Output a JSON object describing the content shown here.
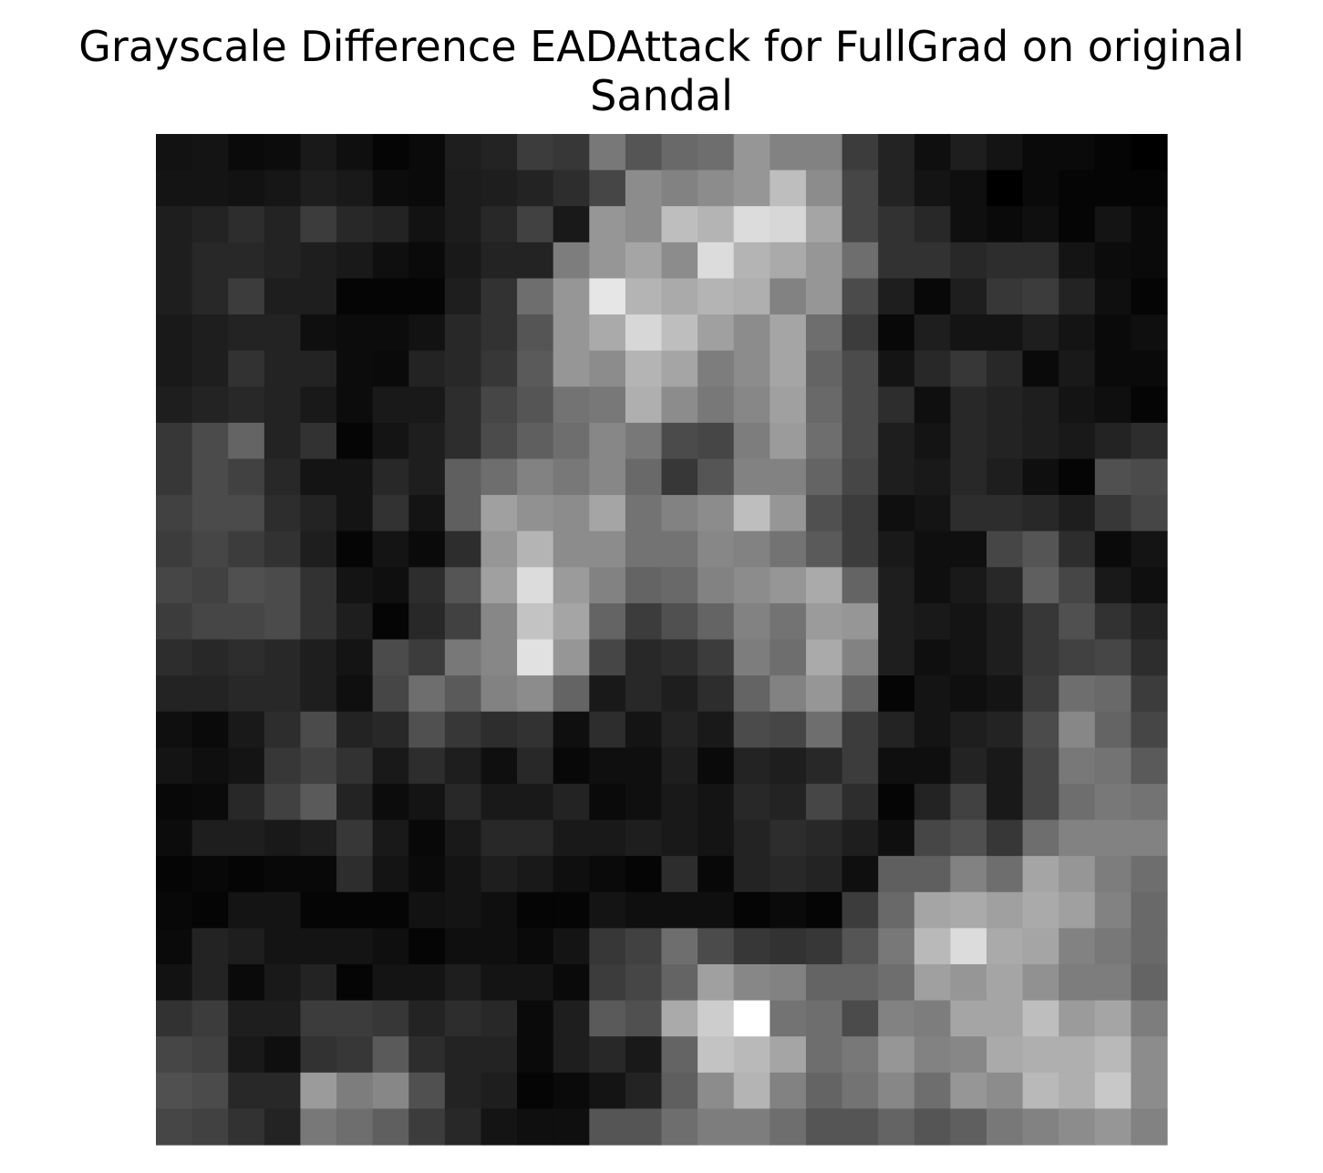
{
  "chart_data": {
    "type": "heatmap",
    "title_lines": [
      "Grayscale Difference EADAttack for FullGrad on original",
      "Sandal"
    ],
    "colormap": "gray",
    "value_range": [
      0,
      255
    ],
    "axes": "off",
    "rows": 28,
    "cols": 28,
    "values": [
      [
        18,
        20,
        10,
        12,
        25,
        15,
        5,
        10,
        30,
        35,
        60,
        55,
        120,
        85,
        105,
        110,
        150,
        130,
        130,
        60,
        35,
        15,
        30,
        20,
        10,
        10,
        5,
        0
      ],
      [
        20,
        20,
        18,
        22,
        30,
        25,
        12,
        10,
        28,
        30,
        35,
        45,
        70,
        140,
        130,
        140,
        150,
        190,
        140,
        70,
        35,
        20,
        15,
        0,
        10,
        5,
        5,
        5
      ],
      [
        30,
        35,
        45,
        35,
        60,
        40,
        35,
        18,
        28,
        40,
        65,
        25,
        150,
        140,
        190,
        180,
        220,
        215,
        165,
        70,
        50,
        40,
        15,
        10,
        15,
        5,
        20,
        10
      ],
      [
        30,
        40,
        40,
        35,
        30,
        25,
        15,
        10,
        25,
        35,
        35,
        125,
        150,
        165,
        140,
        220,
        180,
        170,
        150,
        110,
        50,
        50,
        40,
        45,
        45,
        20,
        12,
        10
      ],
      [
        30,
        40,
        60,
        30,
        30,
        5,
        5,
        5,
        30,
        50,
        110,
        150,
        230,
        180,
        170,
        180,
        175,
        130,
        150,
        75,
        30,
        8,
        30,
        55,
        60,
        35,
        15,
        5
      ],
      [
        25,
        30,
        35,
        35,
        15,
        12,
        12,
        18,
        40,
        50,
        85,
        150,
        170,
        215,
        190,
        160,
        140,
        165,
        110,
        60,
        8,
        30,
        20,
        20,
        30,
        20,
        10,
        15
      ],
      [
        25,
        30,
        50,
        35,
        35,
        12,
        10,
        35,
        40,
        55,
        90,
        150,
        140,
        180,
        165,
        125,
        140,
        165,
        100,
        75,
        20,
        40,
        55,
        40,
        10,
        25,
        10,
        10
      ],
      [
        30,
        35,
        40,
        35,
        25,
        12,
        25,
        25,
        45,
        70,
        85,
        115,
        120,
        175,
        140,
        120,
        135,
        160,
        105,
        75,
        45,
        15,
        40,
        35,
        30,
        20,
        15,
        5
      ],
      [
        55,
        75,
        100,
        35,
        50,
        5,
        20,
        30,
        45,
        75,
        95,
        110,
        135,
        120,
        75,
        70,
        125,
        155,
        110,
        75,
        30,
        20,
        40,
        35,
        30,
        25,
        35,
        45
      ],
      [
        55,
        75,
        65,
        40,
        20,
        20,
        40,
        30,
        95,
        110,
        130,
        120,
        135,
        105,
        55,
        85,
        130,
        130,
        100,
        70,
        30,
        25,
        40,
        30,
        15,
        5,
        80,
        75
      ],
      [
        65,
        75,
        75,
        45,
        35,
        20,
        50,
        20,
        95,
        160,
        145,
        140,
        165,
        115,
        130,
        140,
        190,
        150,
        80,
        60,
        15,
        20,
        45,
        45,
        40,
        30,
        55,
        70
      ],
      [
        60,
        70,
        60,
        50,
        30,
        5,
        20,
        10,
        45,
        150,
        180,
        140,
        140,
        115,
        115,
        135,
        130,
        115,
        90,
        60,
        25,
        15,
        15,
        70,
        85,
        45,
        10,
        20
      ],
      [
        70,
        65,
        80,
        75,
        50,
        20,
        15,
        45,
        85,
        160,
        220,
        155,
        130,
        100,
        105,
        130,
        140,
        150,
        170,
        100,
        30,
        15,
        25,
        40,
        95,
        70,
        25,
        15
      ],
      [
        60,
        70,
        70,
        75,
        50,
        30,
        5,
        40,
        65,
        135,
        195,
        165,
        100,
        60,
        80,
        100,
        130,
        115,
        155,
        150,
        30,
        25,
        20,
        30,
        55,
        80,
        50,
        35
      ],
      [
        45,
        40,
        45,
        40,
        30,
        20,
        75,
        60,
        120,
        135,
        225,
        150,
        70,
        40,
        45,
        60,
        125,
        110,
        170,
        130,
        30,
        15,
        20,
        30,
        55,
        65,
        70,
        45
      ],
      [
        35,
        35,
        40,
        40,
        30,
        15,
        70,
        110,
        90,
        130,
        140,
        100,
        25,
        40,
        30,
        45,
        100,
        130,
        150,
        100,
        5,
        20,
        15,
        20,
        60,
        110,
        105,
        60
      ],
      [
        15,
        10,
        25,
        45,
        75,
        35,
        40,
        80,
        55,
        45,
        50,
        15,
        45,
        20,
        35,
        25,
        75,
        70,
        110,
        60,
        35,
        20,
        30,
        35,
        75,
        135,
        100,
        70
      ],
      [
        20,
        15,
        20,
        55,
        65,
        50,
        25,
        45,
        30,
        15,
        40,
        8,
        15,
        15,
        30,
        10,
        35,
        30,
        40,
        60,
        15,
        15,
        35,
        25,
        70,
        120,
        115,
        90
      ],
      [
        8,
        10,
        40,
        65,
        90,
        35,
        12,
        20,
        40,
        25,
        25,
        35,
        10,
        15,
        25,
        20,
        40,
        35,
        70,
        45,
        5,
        35,
        65,
        25,
        70,
        110,
        120,
        115
      ],
      [
        12,
        30,
        30,
        25,
        30,
        55,
        25,
        8,
        25,
        40,
        40,
        25,
        25,
        30,
        25,
        20,
        35,
        45,
        40,
        30,
        15,
        70,
        80,
        55,
        110,
        130,
        130,
        130
      ],
      [
        5,
        8,
        5,
        8,
        8,
        45,
        20,
        10,
        20,
        30,
        25,
        15,
        10,
        5,
        45,
        8,
        35,
        40,
        35,
        15,
        95,
        95,
        130,
        110,
        165,
        150,
        125,
        110
      ],
      [
        8,
        5,
        20,
        20,
        5,
        5,
        5,
        18,
        20,
        15,
        5,
        5,
        20,
        15,
        15,
        15,
        5,
        10,
        5,
        60,
        105,
        165,
        170,
        160,
        170,
        160,
        130,
        105
      ],
      [
        10,
        35,
        30,
        20,
        20,
        20,
        15,
        5,
        15,
        15,
        10,
        20,
        55,
        65,
        110,
        75,
        55,
        50,
        55,
        85,
        120,
        185,
        220,
        170,
        165,
        130,
        120,
        105
      ],
      [
        18,
        35,
        10,
        25,
        35,
        5,
        20,
        20,
        30,
        20,
        20,
        10,
        60,
        70,
        100,
        160,
        135,
        130,
        100,
        100,
        110,
        160,
        150,
        165,
        145,
        125,
        125,
        100
      ],
      [
        50,
        60,
        30,
        30,
        60,
        60,
        55,
        35,
        45,
        40,
        10,
        30,
        90,
        80,
        170,
        205,
        255,
        115,
        110,
        75,
        130,
        125,
        165,
        165,
        190,
        155,
        165,
        125
      ],
      [
        70,
        65,
        25,
        15,
        50,
        55,
        90,
        45,
        35,
        35,
        10,
        30,
        40,
        25,
        100,
        195,
        185,
        165,
        110,
        120,
        150,
        130,
        135,
        170,
        175,
        175,
        185,
        140
      ],
      [
        80,
        75,
        40,
        40,
        155,
        125,
        135,
        80,
        35,
        30,
        5,
        10,
        20,
        35,
        95,
        140,
        180,
        130,
        100,
        115,
        135,
        110,
        150,
        140,
        185,
        175,
        200,
        140
      ],
      [
        70,
        65,
        50,
        35,
        120,
        110,
        95,
        60,
        40,
        20,
        15,
        15,
        85,
        85,
        110,
        125,
        125,
        110,
        85,
        85,
        100,
        85,
        95,
        120,
        130,
        140,
        150,
        130
      ]
    ]
  }
}
